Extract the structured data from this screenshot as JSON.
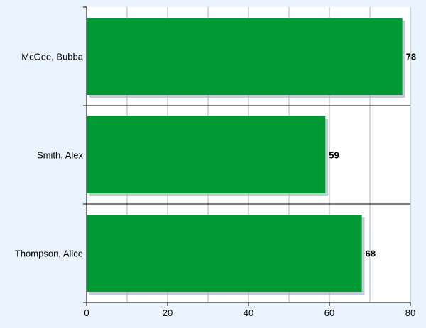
{
  "chart_data": {
    "type": "bar",
    "orientation": "horizontal",
    "categories": [
      "McGee, Bubba",
      "Smith, Alex",
      "Thompson, Alice"
    ],
    "values": [
      78,
      59,
      68
    ],
    "xlim": [
      0,
      80
    ],
    "x_ticks": [
      0,
      20,
      40,
      60,
      80
    ],
    "minor_gridlines": [
      10,
      30,
      50,
      70
    ],
    "grid": true,
    "data_labels": true,
    "legend": "none",
    "title": "",
    "xlabel": "",
    "ylabel": ""
  },
  "colors": {
    "background": "#e8f3fd",
    "plot_background": "#ffffff",
    "bar_fill": "#009933",
    "bar_shadow": "#9aa9b8",
    "gridline": "#a8b4c0",
    "axis": "#000000"
  }
}
